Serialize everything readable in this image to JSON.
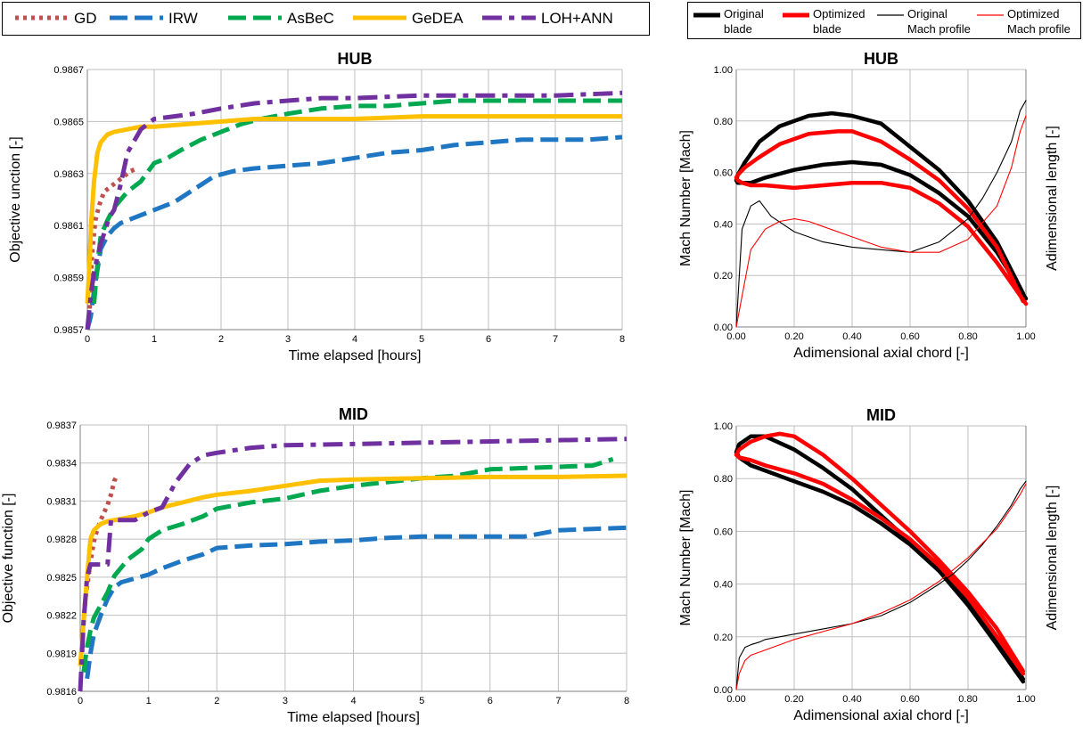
{
  "legend_left": [
    {
      "name": "GD",
      "color": "#C0504D",
      "style": "dot"
    },
    {
      "name": "IRW",
      "color": "#1F77C4",
      "style": "dash"
    },
    {
      "name": "AsBeC",
      "color": "#00A850",
      "style": "dash"
    },
    {
      "name": "GeDEA",
      "color": "#FFC000",
      "style": "solid"
    },
    {
      "name": "LOH+ANN",
      "color": "#7030A0",
      "style": "dashdot"
    }
  ],
  "legend_right": [
    {
      "line1": "Original",
      "line2": "blade",
      "color": "#000000",
      "width": 5
    },
    {
      "line1": "Optimized",
      "line2": "blade",
      "color": "#FF0000",
      "width": 5
    },
    {
      "line1": "Original",
      "line2": "Mach profile",
      "color": "#000000",
      "width": 1.2
    },
    {
      "line1": "Optimized",
      "line2": "Mach profile",
      "color": "#FF0000",
      "width": 1.2
    }
  ],
  "chart_data": [
    {
      "type": "line",
      "title": "HUB",
      "xlabel": "Time elapsed [hours]",
      "ylabel": "Objective unction [-]",
      "xlim": [
        0,
        8
      ],
      "ylim": [
        0.9857,
        0.9867
      ],
      "xticks": [
        "0",
        "1",
        "2",
        "3",
        "4",
        "5",
        "6",
        "7",
        "8"
      ],
      "yticks": [
        "0.9857",
        "0.9859",
        "0.9861",
        "0.9863",
        "0.9865",
        "0.9867"
      ],
      "grid": true,
      "series": [
        {
          "name": "GD",
          "x": [
            0.03,
            0.05,
            0.08,
            0.12,
            0.18,
            0.25,
            0.35,
            0.45,
            0.55,
            0.65,
            0.75
          ],
          "y": [
            0.98575,
            0.9859,
            0.98602,
            0.98612,
            0.98618,
            0.98623,
            0.98625,
            0.98627,
            0.98629,
            0.98631,
            0.98632
          ]
        },
        {
          "name": "IRW",
          "x": [
            0,
            0.05,
            0.1,
            0.15,
            0.2,
            0.3,
            0.4,
            0.5,
            0.7,
            1.0,
            1.3,
            1.6,
            1.9,
            2.2,
            2.5,
            3.0,
            3.5,
            4.0,
            4.5,
            5.0,
            5.5,
            6.0,
            6.5,
            7.0,
            7.5,
            8.0
          ],
          "y": [
            0.9857,
            0.98575,
            0.98585,
            0.98593,
            0.98601,
            0.98606,
            0.98609,
            0.98611,
            0.98613,
            0.98616,
            0.98619,
            0.98624,
            0.98629,
            0.98631,
            0.98632,
            0.98633,
            0.98634,
            0.98636,
            0.98638,
            0.98639,
            0.98641,
            0.98642,
            0.98643,
            0.98643,
            0.98643,
            0.98644
          ]
        },
        {
          "name": "AsBeC",
          "x": [
            0.1,
            0.15,
            0.2,
            0.3,
            0.4,
            0.5,
            0.6,
            0.7,
            0.8,
            1.0,
            1.2,
            1.4,
            1.7,
            2.0,
            2.3,
            2.6,
            3.0,
            3.5,
            4.0,
            4.5,
            5.0,
            5.5,
            6.0,
            6.5,
            7.0,
            7.5,
            8.0
          ],
          "y": [
            0.9858,
            0.98595,
            0.98606,
            0.98612,
            0.98617,
            0.9862,
            0.98623,
            0.98625,
            0.98627,
            0.98634,
            0.98636,
            0.98639,
            0.98643,
            0.98646,
            0.98649,
            0.98651,
            0.98653,
            0.98655,
            0.98656,
            0.98656,
            0.98657,
            0.98658,
            0.98658,
            0.98658,
            0.98658,
            0.98658,
            0.98658
          ]
        },
        {
          "name": "GeDEA",
          "x": [
            0,
            0.03,
            0.06,
            0.1,
            0.15,
            0.2,
            0.3,
            0.4,
            0.6,
            0.8,
            1.0,
            1.5,
            2.0,
            2.5,
            3.0,
            4.0,
            5.0,
            6.0,
            7.0,
            8.0
          ],
          "y": [
            0.9858,
            0.98595,
            0.98612,
            0.98627,
            0.98638,
            0.98642,
            0.98645,
            0.98646,
            0.98647,
            0.98648,
            0.98648,
            0.98649,
            0.9865,
            0.98651,
            0.98651,
            0.98651,
            0.98652,
            0.98652,
            0.98652,
            0.98652
          ]
        },
        {
          "name": "LOH+ANN",
          "x": [
            0,
            0.03,
            0.06,
            0.1,
            0.15,
            0.2,
            0.25,
            0.3,
            0.35,
            0.4,
            0.5,
            0.6,
            0.8,
            1.0,
            1.3,
            1.6,
            2.0,
            2.5,
            3.0,
            3.5,
            4.0,
            5.0,
            6.0,
            7.0,
            8.0
          ],
          "y": [
            0.9857,
            0.98578,
            0.98585,
            0.98592,
            0.98598,
            0.98603,
            0.98607,
            0.98611,
            0.98614,
            0.98616,
            0.98626,
            0.98638,
            0.98647,
            0.98651,
            0.98652,
            0.98653,
            0.98655,
            0.98657,
            0.98658,
            0.98659,
            0.98659,
            0.9866,
            0.9866,
            0.9866,
            0.98661
          ]
        }
      ]
    },
    {
      "type": "line",
      "title": "MID",
      "xlabel": "Time elapsed [hours]",
      "ylabel": "Objective function [-]",
      "xlim": [
        0,
        8
      ],
      "ylim": [
        0.9816,
        0.9837
      ],
      "xticks": [
        "0",
        "1",
        "2",
        "3",
        "4",
        "5",
        "6",
        "7",
        "8"
      ],
      "yticks": [
        "0.9816",
        "0.9819",
        "0.9822",
        "0.9825",
        "0.9828",
        "0.9831",
        "0.9834",
        "0.9837"
      ],
      "grid": true,
      "series": [
        {
          "name": "GD",
          "x": [
            0.05,
            0.08,
            0.12,
            0.15,
            0.2,
            0.25,
            0.3,
            0.35,
            0.4,
            0.45,
            0.5,
            0.55
          ],
          "y": [
            0.98215,
            0.98235,
            0.9825,
            0.98262,
            0.98278,
            0.98288,
            0.98295,
            0.98301,
            0.98307,
            0.98315,
            0.98326,
            0.98331
          ]
        },
        {
          "name": "IRW",
          "x": [
            0.1,
            0.15,
            0.2,
            0.3,
            0.4,
            0.5,
            0.6,
            0.8,
            1.0,
            1.2,
            1.5,
            1.8,
            2.0,
            2.5,
            3.0,
            3.5,
            4.0,
            4.5,
            5.0,
            5.5,
            6.0,
            6.5,
            7.0,
            7.5,
            8.0
          ],
          "y": [
            0.9817,
            0.9819,
            0.98205,
            0.9822,
            0.98233,
            0.98242,
            0.98246,
            0.98249,
            0.98252,
            0.98257,
            0.98263,
            0.98268,
            0.98273,
            0.98275,
            0.98276,
            0.98278,
            0.98279,
            0.98281,
            0.98282,
            0.98282,
            0.98282,
            0.98282,
            0.98287,
            0.98288,
            0.98289
          ]
        },
        {
          "name": "AsBeC",
          "x": [
            0.05,
            0.1,
            0.15,
            0.2,
            0.3,
            0.4,
            0.5,
            0.7,
            0.9,
            1.0,
            1.2,
            1.5,
            1.8,
            2.0,
            2.5,
            3.0,
            3.5,
            4.0,
            4.5,
            5.0,
            5.5,
            6.0,
            6.5,
            7.0,
            7.5,
            7.8
          ],
          "y": [
            0.98175,
            0.98195,
            0.98208,
            0.98218,
            0.98228,
            0.98238,
            0.98251,
            0.98264,
            0.98272,
            0.9828,
            0.98287,
            0.98292,
            0.98298,
            0.98304,
            0.98309,
            0.98312,
            0.98318,
            0.98322,
            0.98325,
            0.98328,
            0.9833,
            0.98335,
            0.98336,
            0.98337,
            0.98338,
            0.98343
          ]
        },
        {
          "name": "GeDEA",
          "x": [
            0,
            0.05,
            0.1,
            0.15,
            0.2,
            0.3,
            0.4,
            0.6,
            0.8,
            1.0,
            1.2,
            1.5,
            1.8,
            2.0,
            2.5,
            3.0,
            3.5,
            4.0,
            5.0,
            6.0,
            7.0,
            8.0
          ],
          "y": [
            0.9818,
            0.98215,
            0.9825,
            0.9828,
            0.98287,
            0.98292,
            0.98294,
            0.98296,
            0.98298,
            0.98301,
            0.98305,
            0.98309,
            0.98313,
            0.98315,
            0.98318,
            0.98322,
            0.98326,
            0.98327,
            0.98328,
            0.98329,
            0.98329,
            0.9833
          ]
        },
        {
          "name": "LOH+ANN",
          "x": [
            0,
            0.05,
            0.1,
            0.15,
            0.2,
            0.3,
            0.4,
            0.45,
            0.5,
            0.6,
            0.8,
            1.0,
            1.2,
            1.4,
            1.6,
            1.8,
            2.0,
            2.5,
            3.0,
            4.0,
            5.0,
            6.0,
            7.0,
            8.0
          ],
          "y": [
            0.9816,
            0.98215,
            0.9825,
            0.9826,
            0.9826,
            0.9826,
            0.9826,
            0.98295,
            0.98295,
            0.98295,
            0.98295,
            0.98301,
            0.98305,
            0.98325,
            0.98339,
            0.98346,
            0.98348,
            0.98352,
            0.98354,
            0.98355,
            0.98356,
            0.98357,
            0.98358,
            0.98359
          ]
        }
      ]
    },
    {
      "type": "line",
      "title": "HUB",
      "xlabel": "Adimensional axial chord [-]",
      "ylabel": "Mach Number [Mach]",
      "ylabel_right": "Adimensional length [-]",
      "xlim": [
        0,
        1
      ],
      "ylim": [
        0,
        1
      ],
      "xticks": [
        "0.00",
        "0.20",
        "0.40",
        "0.60",
        "0.80",
        "1.00"
      ],
      "yticks": [
        "0.00",
        "0.20",
        "0.40",
        "0.60",
        "0.80",
        "1.00"
      ],
      "grid": true,
      "series": [
        {
          "name": "Original blade",
          "x": [
            0.99,
            0.9,
            0.8,
            0.7,
            0.6,
            0.5,
            0.4,
            0.33,
            0.25,
            0.15,
            0.08,
            0.03,
            0.005,
            0.0,
            0.005,
            0.02,
            0.05,
            0.1,
            0.2,
            0.3,
            0.4,
            0.5,
            0.6,
            0.7,
            0.8,
            0.9,
            1.0
          ],
          "y": [
            0.13,
            0.33,
            0.49,
            0.61,
            0.7,
            0.79,
            0.82,
            0.83,
            0.82,
            0.78,
            0.72,
            0.64,
            0.59,
            0.57,
            0.56,
            0.56,
            0.56,
            0.58,
            0.61,
            0.63,
            0.64,
            0.63,
            0.59,
            0.52,
            0.43,
            0.29,
            0.11
          ]
        },
        {
          "name": "Optimized blade",
          "x": [
            0.99,
            0.9,
            0.8,
            0.7,
            0.6,
            0.5,
            0.4,
            0.35,
            0.25,
            0.15,
            0.08,
            0.03,
            0.005,
            0.0,
            0.005,
            0.02,
            0.05,
            0.1,
            0.2,
            0.3,
            0.4,
            0.5,
            0.6,
            0.7,
            0.8,
            0.9,
            1.0
          ],
          "y": [
            0.1,
            0.31,
            0.46,
            0.57,
            0.65,
            0.72,
            0.76,
            0.76,
            0.75,
            0.71,
            0.66,
            0.62,
            0.59,
            0.58,
            0.57,
            0.56,
            0.55,
            0.55,
            0.54,
            0.55,
            0.56,
            0.56,
            0.54,
            0.48,
            0.39,
            0.25,
            0.09
          ]
        },
        {
          "name": "Original Mach profile",
          "x": [
            0.0,
            0.02,
            0.05,
            0.08,
            0.12,
            0.2,
            0.3,
            0.4,
            0.5,
            0.6,
            0.7,
            0.8,
            0.85,
            0.9,
            0.95,
            0.98,
            1.0
          ],
          "y": [
            0.0,
            0.38,
            0.47,
            0.49,
            0.43,
            0.37,
            0.33,
            0.31,
            0.3,
            0.29,
            0.33,
            0.42,
            0.5,
            0.6,
            0.72,
            0.84,
            0.88
          ]
        },
        {
          "name": "Optimized Mach profile",
          "x": [
            0.0,
            0.02,
            0.05,
            0.1,
            0.15,
            0.2,
            0.25,
            0.3,
            0.4,
            0.5,
            0.6,
            0.7,
            0.8,
            0.9,
            0.95,
            0.98,
            1.0
          ],
          "y": [
            0.0,
            0.12,
            0.3,
            0.38,
            0.41,
            0.42,
            0.41,
            0.39,
            0.35,
            0.31,
            0.29,
            0.29,
            0.34,
            0.47,
            0.62,
            0.76,
            0.82
          ]
        }
      ]
    },
    {
      "type": "line",
      "title": "MID",
      "xlabel": "Adimensional axial chord [-]",
      "ylabel": "Mach Number [Mach]",
      "ylabel_right": "Adimensional length [-]",
      "xlim": [
        0,
        1
      ],
      "ylim": [
        0,
        1
      ],
      "xticks": [
        "0.00",
        "0.20",
        "0.40",
        "0.60",
        "0.80",
        "1.00"
      ],
      "yticks": [
        "0.00",
        "0.20",
        "0.40",
        "0.60",
        "0.80",
        "1.00"
      ],
      "grid": true,
      "series": [
        {
          "name": "Original blade",
          "x": [
            0.99,
            0.9,
            0.8,
            0.7,
            0.6,
            0.5,
            0.4,
            0.3,
            0.2,
            0.1,
            0.05,
            0.01,
            0.0,
            0.01,
            0.05,
            0.1,
            0.2,
            0.3,
            0.4,
            0.5,
            0.6,
            0.7,
            0.8,
            0.9,
            0.99
          ],
          "y": [
            0.04,
            0.19,
            0.33,
            0.45,
            0.56,
            0.66,
            0.76,
            0.84,
            0.91,
            0.96,
            0.96,
            0.93,
            0.9,
            0.88,
            0.85,
            0.83,
            0.79,
            0.75,
            0.7,
            0.63,
            0.55,
            0.45,
            0.32,
            0.17,
            0.03
          ]
        },
        {
          "name": "Optimized blade",
          "x": [
            0.99,
            0.9,
            0.8,
            0.7,
            0.6,
            0.5,
            0.4,
            0.3,
            0.2,
            0.15,
            0.1,
            0.05,
            0.01,
            0.0,
            0.01,
            0.05,
            0.1,
            0.2,
            0.3,
            0.4,
            0.5,
            0.6,
            0.7,
            0.8,
            0.9,
            0.99
          ],
          "y": [
            0.07,
            0.23,
            0.37,
            0.49,
            0.6,
            0.7,
            0.8,
            0.89,
            0.96,
            0.97,
            0.96,
            0.94,
            0.91,
            0.89,
            0.88,
            0.87,
            0.85,
            0.82,
            0.78,
            0.72,
            0.65,
            0.57,
            0.47,
            0.35,
            0.2,
            0.06
          ]
        },
        {
          "name": "Original Mach profile",
          "x": [
            0.0,
            0.01,
            0.03,
            0.05,
            0.08,
            0.1,
            0.15,
            0.2,
            0.3,
            0.4,
            0.5,
            0.6,
            0.7,
            0.75,
            0.8,
            0.85,
            0.9,
            0.95,
            0.98,
            1.0
          ],
          "y": [
            0.0,
            0.12,
            0.16,
            0.17,
            0.18,
            0.19,
            0.2,
            0.21,
            0.23,
            0.25,
            0.28,
            0.33,
            0.4,
            0.44,
            0.49,
            0.55,
            0.62,
            0.7,
            0.76,
            0.79
          ]
        },
        {
          "name": "Optimized Mach profile",
          "x": [
            0.0,
            0.01,
            0.03,
            0.05,
            0.1,
            0.2,
            0.3,
            0.4,
            0.5,
            0.6,
            0.7,
            0.8,
            0.9,
            0.95,
            0.98,
            1.0
          ],
          "y": [
            0.0,
            0.06,
            0.11,
            0.13,
            0.15,
            0.19,
            0.22,
            0.25,
            0.29,
            0.34,
            0.41,
            0.5,
            0.61,
            0.69,
            0.74,
            0.78
          ]
        }
      ]
    }
  ]
}
